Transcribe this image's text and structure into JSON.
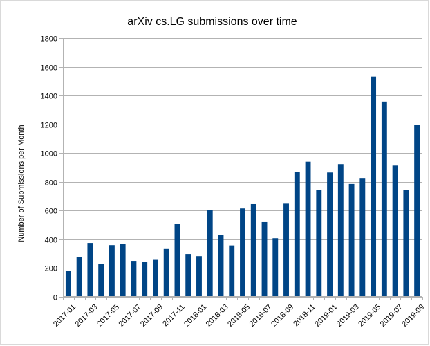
{
  "chart_data": {
    "type": "bar",
    "title": "arXiv cs.LG submissions over time",
    "xlabel": "",
    "ylabel": "Number of Submissions per Month",
    "ylim": [
      0,
      1800
    ],
    "yticks": [
      0,
      200,
      400,
      600,
      800,
      1000,
      1200,
      1400,
      1600,
      1800
    ],
    "grid": true,
    "legend": "none",
    "bar_color": "#004586",
    "categories": [
      "2017-01",
      "2017-02",
      "2017-03",
      "2017-04",
      "2017-05",
      "2017-06",
      "2017-07",
      "2017-08",
      "2017-09",
      "2017-10",
      "2017-11",
      "2017-12",
      "2018-01",
      "2018-02",
      "2018-03",
      "2018-04",
      "2018-05",
      "2018-06",
      "2018-07",
      "2018-08",
      "2018-09",
      "2018-10",
      "2018-11",
      "2018-12",
      "2019-01",
      "2019-02",
      "2019-03",
      "2019-04",
      "2019-05",
      "2019-06",
      "2019-07",
      "2019-08",
      "2019-09"
    ],
    "xtick_labels": [
      "2017-01",
      "2017-03",
      "2017-05",
      "2017-07",
      "2017-09",
      "2017-11",
      "2018-01",
      "2018-03",
      "2018-05",
      "2018-07",
      "2018-09",
      "2018-11",
      "2019-01",
      "2019-03",
      "2019-05",
      "2019-07",
      "2019-09"
    ],
    "values": [
      180,
      275,
      375,
      230,
      360,
      368,
      250,
      245,
      262,
      333,
      508,
      298,
      283,
      603,
      433,
      358,
      615,
      645,
      520,
      408,
      648,
      868,
      940,
      743,
      865,
      923,
      785,
      827,
      1532,
      1358,
      913,
      745,
      1197
    ]
  }
}
